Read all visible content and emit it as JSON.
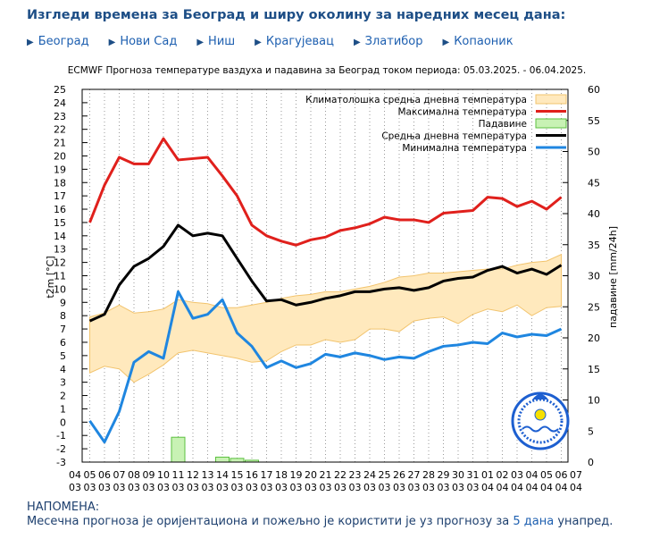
{
  "header": {
    "title": "Изгледи времена за Београд и ширу околину за наредних месец дана:"
  },
  "links": [
    "Београд",
    "Нови Сад",
    "Ниш",
    "Крагујевац",
    "Златибор",
    "Копаоник"
  ],
  "chart_data": {
    "type": "line",
    "title": "ECMWF Прогноза температуре ваздуха и падавина за Београд током периода: 05.03.2025. - 06.04.2025.",
    "y_label": "t2m [°C]",
    "y2_label": "падавине [mm/24h]",
    "categories": [
      [
        "04",
        "03"
      ],
      [
        "05",
        "03"
      ],
      [
        "06",
        "03"
      ],
      [
        "07",
        "03"
      ],
      [
        "08",
        "03"
      ],
      [
        "09",
        "03"
      ],
      [
        "10",
        "03"
      ],
      [
        "11",
        "03"
      ],
      [
        "12",
        "03"
      ],
      [
        "13",
        "03"
      ],
      [
        "14",
        "03"
      ],
      [
        "15",
        "03"
      ],
      [
        "16",
        "03"
      ],
      [
        "17",
        "03"
      ],
      [
        "18",
        "03"
      ],
      [
        "19",
        "03"
      ],
      [
        "20",
        "03"
      ],
      [
        "21",
        "03"
      ],
      [
        "22",
        "03"
      ],
      [
        "23",
        "03"
      ],
      [
        "24",
        "03"
      ],
      [
        "25",
        "03"
      ],
      [
        "26",
        "03"
      ],
      [
        "27",
        "03"
      ],
      [
        "28",
        "03"
      ],
      [
        "29",
        "03"
      ],
      [
        "30",
        "03"
      ],
      [
        "31",
        "03"
      ],
      [
        "01",
        "04"
      ],
      [
        "02",
        "04"
      ],
      [
        "03",
        "04"
      ],
      [
        "04",
        "04"
      ],
      [
        "05",
        "04"
      ],
      [
        "06",
        "04"
      ],
      [
        "07",
        "04"
      ]
    ],
    "ylim": [
      -3,
      25
    ],
    "yticks": [
      -3,
      -2,
      -1,
      0,
      1,
      2,
      3,
      4,
      5,
      6,
      7,
      8,
      9,
      10,
      11,
      12,
      13,
      14,
      15,
      16,
      17,
      18,
      19,
      20,
      21,
      22,
      23,
      24,
      25
    ],
    "y2lim": [
      0,
      60
    ],
    "y2ticks": [
      0,
      5,
      10,
      15,
      20,
      25,
      30,
      35,
      40,
      45,
      50,
      55,
      60
    ],
    "grid": true,
    "legend": "upper right",
    "series": [
      {
        "name": "Климатолошка средња дневна температура",
        "type": "area",
        "color": "#ffe9bd",
        "edge": "#f2c46e",
        "high": [
          null,
          7.9,
          8.2,
          8.8,
          8.2,
          8.3,
          8.5,
          9.2,
          9.0,
          8.9,
          8.6,
          8.6,
          8.8,
          9.0,
          9.3,
          9.5,
          9.6,
          9.8,
          9.8,
          10.0,
          10.2,
          10.5,
          10.9,
          11.0,
          11.2,
          11.2,
          11.3,
          11.4,
          11.5,
          11.5,
          11.8,
          12.0,
          12.1,
          12.6,
          null
        ],
        "low": [
          null,
          3.7,
          4.2,
          4.0,
          3.0,
          3.6,
          4.3,
          5.2,
          5.4,
          5.2,
          5.0,
          4.8,
          4.5,
          4.6,
          5.3,
          5.8,
          5.8,
          6.2,
          6.0,
          6.2,
          7.0,
          7.0,
          6.8,
          7.6,
          7.8,
          7.9,
          7.4,
          8.1,
          8.5,
          8.3,
          8.8,
          8.0,
          8.6,
          8.7,
          null
        ]
      },
      {
        "name": "Максимална температура",
        "type": "line",
        "color": "#e0201c",
        "values": [
          null,
          15.0,
          17.8,
          19.9,
          19.4,
          19.4,
          21.3,
          19.7,
          19.8,
          19.9,
          18.5,
          17.0,
          14.8,
          14.0,
          13.6,
          13.3,
          13.7,
          13.9,
          14.4,
          14.6,
          14.9,
          15.4,
          15.2,
          15.2,
          15.0,
          15.7,
          15.8,
          15.9,
          16.9,
          16.8,
          16.2,
          16.6,
          16.0,
          16.9,
          null
        ]
      },
      {
        "name": "Падавине",
        "type": "bar",
        "axis": "y2",
        "color": "#c8f2b4",
        "edge": "#5cc040",
        "values": [
          null,
          0,
          0,
          0,
          0,
          0,
          0,
          4.0,
          0,
          0,
          0.8,
          0.6,
          0.3,
          0,
          0,
          0,
          0,
          0,
          0,
          0,
          0,
          0,
          0,
          0,
          0,
          0,
          0,
          0,
          0,
          0,
          0,
          0,
          0,
          0,
          null
        ]
      },
      {
        "name": "Средња дневна температура",
        "type": "line",
        "color": "#000000",
        "values": [
          null,
          7.6,
          8.1,
          10.3,
          11.7,
          12.3,
          13.2,
          14.8,
          14.0,
          14.2,
          14.0,
          12.3,
          10.6,
          9.1,
          9.2,
          8.8,
          9.0,
          9.3,
          9.5,
          9.8,
          9.8,
          10.0,
          10.1,
          9.9,
          10.1,
          10.6,
          10.8,
          10.9,
          11.4,
          11.7,
          11.2,
          11.5,
          11.1,
          11.8,
          null
        ]
      },
      {
        "name": "Минимална температура",
        "type": "line",
        "color": "#1f86e0",
        "values": [
          null,
          0.1,
          -1.5,
          0.8,
          4.5,
          5.3,
          4.8,
          9.8,
          7.8,
          8.1,
          9.2,
          6.7,
          5.7,
          4.1,
          4.6,
          4.1,
          4.4,
          5.1,
          4.9,
          5.2,
          5.0,
          4.7,
          4.9,
          4.8,
          5.3,
          5.7,
          5.8,
          6.0,
          5.9,
          6.7,
          6.4,
          6.6,
          6.5,
          7.0,
          null
        ]
      }
    ]
  },
  "footer": {
    "note": "НАПОМЕНА:",
    "text": "Месечна прогноза је оријентациона и пожељно је користити је уз прогнозу за ",
    "link": "5 дана",
    "tail": " унапред."
  }
}
